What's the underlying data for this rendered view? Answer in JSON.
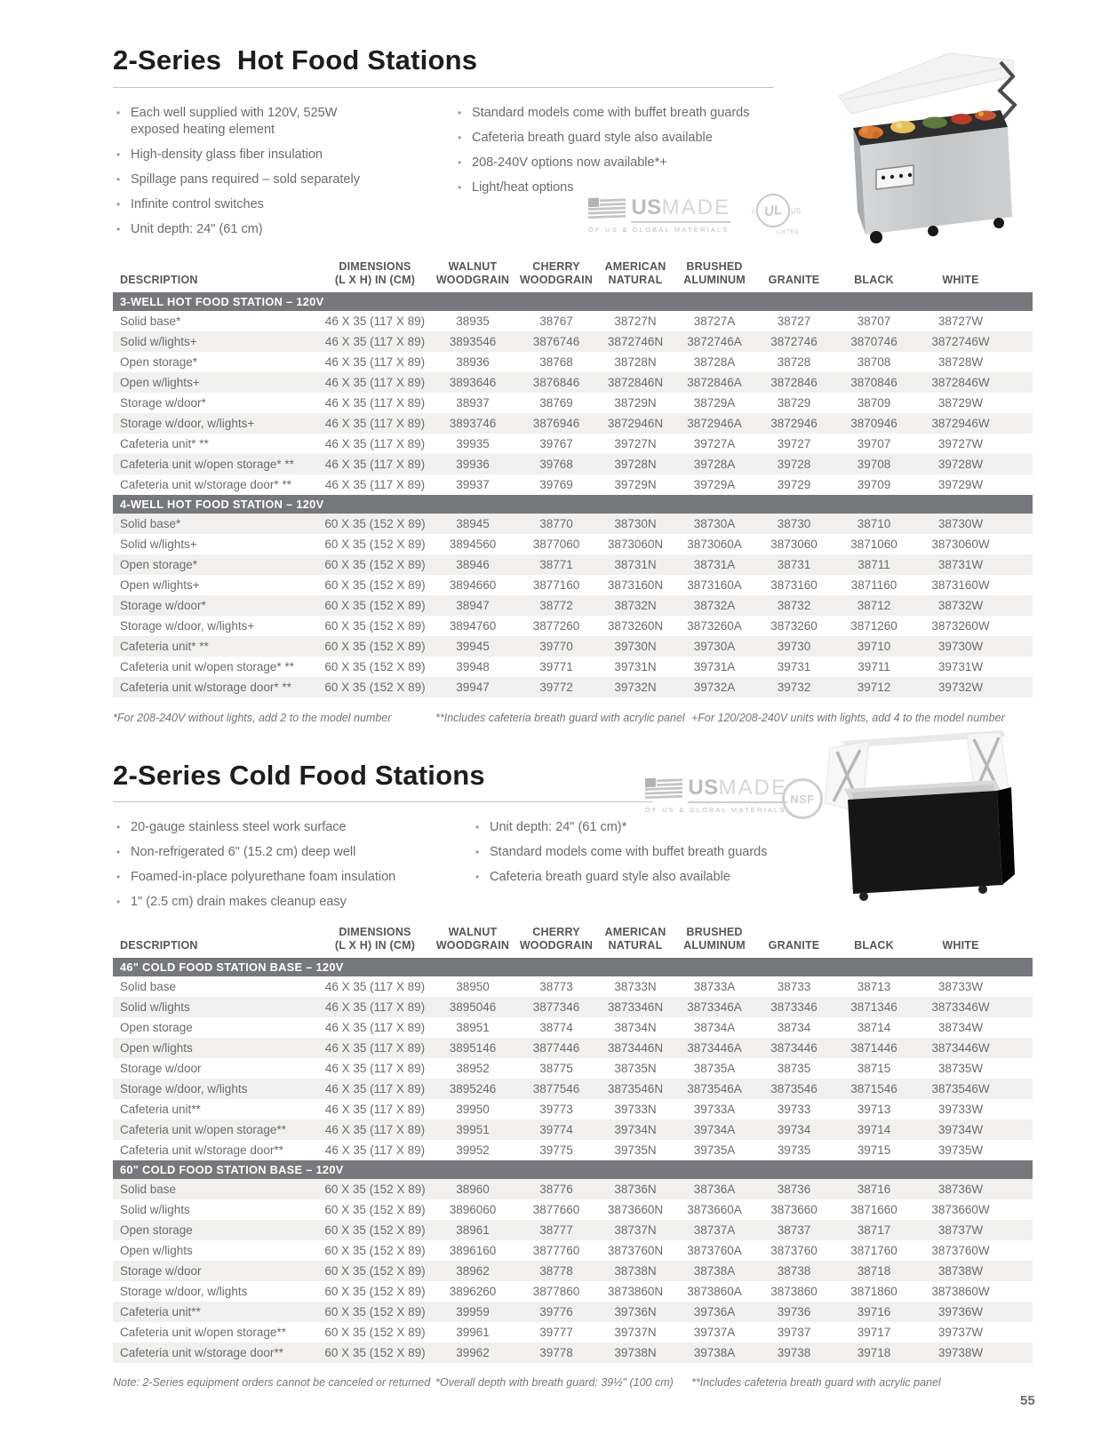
{
  "page_number": "55",
  "badges": {
    "usmade_strong": "US",
    "usmade_light": "MADE",
    "usmade_sub": "OF US & GLOBAL MATERIALS",
    "ul_c": "c",
    "ul_text": "UL",
    "ul_us": "US",
    "ul_listed": "LISTED",
    "nsf_text": "NSF"
  },
  "hot": {
    "title": "2-Series  Hot Food Stations",
    "bullets_left": [
      "Each well supplied with 120V, 525W exposed heating element",
      "High-density glass fiber insulation",
      "Spillage pans required – sold separately",
      "Infinite control switches",
      "Unit depth: 24\" (61 cm)"
    ],
    "bullets_right": [
      "Standard models come with buffet breath guards",
      "Cafeteria breath guard style also available",
      "208-240V options now available*+",
      "Light/heat options"
    ],
    "table": {
      "headers": [
        [
          "DESCRIPTION"
        ],
        [
          "DIMENSIONS",
          "(L X H) IN (CM)"
        ],
        [
          "WALNUT",
          "WOODGRAIN"
        ],
        [
          "CHERRY",
          "WOODGRAIN"
        ],
        [
          "AMERICAN",
          "NATURAL"
        ],
        [
          "BRUSHED",
          "ALUMINUM"
        ],
        [
          "GRANITE"
        ],
        [
          "BLACK"
        ],
        [
          "WHITE"
        ]
      ],
      "sections": [
        {
          "label": "3-WELL HOT FOOD STATION – 120V",
          "rows": [
            [
              "Solid base*",
              "46 X 35 (117 X 89)",
              "38935",
              "38767",
              "38727N",
              "38727A",
              "38727",
              "38707",
              "38727W"
            ],
            [
              "Solid w/lights+",
              "46 X 35 (117 X 89)",
              "3893546",
              "3876746",
              "3872746N",
              "3872746A",
              "3872746",
              "3870746",
              "3872746W"
            ],
            [
              "Open storage*",
              "46 X 35 (117 X 89)",
              "38936",
              "38768",
              "38728N",
              "38728A",
              "38728",
              "38708",
              "38728W"
            ],
            [
              "Open w/lights+",
              "46 X 35 (117 X 89)",
              "3893646",
              "3876846",
              "3872846N",
              "3872846A",
              "3872846",
              "3870846",
              "3872846W"
            ],
            [
              "Storage w/door*",
              "46 X 35 (117 X 89)",
              "38937",
              "38769",
              "38729N",
              "38729A",
              "38729",
              "38709",
              "38729W"
            ],
            [
              "Storage w/door, w/lights+",
              "46 X 35 (117 X 89)",
              "3893746",
              "3876946",
              "3872946N",
              "3872946A",
              "3872946",
              "3870946",
              "3872946W"
            ],
            [
              "Cafeteria unit* **",
              "46 X 35 (117 X 89)",
              "39935",
              "39767",
              "39727N",
              "39727A",
              "39727",
              "39707",
              "39727W"
            ],
            [
              "Cafeteria unit w/open storage* **",
              "46 X 35 (117 X 89)",
              "39936",
              "39768",
              "39728N",
              "39728A",
              "39728",
              "39708",
              "39728W"
            ],
            [
              "Cafeteria unit w/storage door* **",
              "46 X 35 (117 X 89)",
              "39937",
              "39769",
              "39729N",
              "39729A",
              "39729",
              "39709",
              "39729W"
            ]
          ]
        },
        {
          "label": "4-WELL HOT FOOD STATION – 120V",
          "rows": [
            [
              "Solid base*",
              "60 X 35 (152 X 89)",
              "38945",
              "38770",
              "38730N",
              "38730A",
              "38730",
              "38710",
              "38730W"
            ],
            [
              "Solid w/lights+",
              "60 X 35 (152 X 89)",
              "3894560",
              "3877060",
              "3873060N",
              "3873060A",
              "3873060",
              "3871060",
              "3873060W"
            ],
            [
              "Open storage*",
              "60 X 35 (152 X 89)",
              "38946",
              "38771",
              "38731N",
              "38731A",
              "38731",
              "38711",
              "38731W"
            ],
            [
              "Open w/lights+",
              "60 X 35 (152 X 89)",
              "3894660",
              "3877160",
              "3873160N",
              "3873160A",
              "3873160",
              "3871160",
              "3873160W"
            ],
            [
              "Storage w/door*",
              "60 X 35 (152 X 89)",
              "38947",
              "38772",
              "38732N",
              "38732A",
              "38732",
              "38712",
              "38732W"
            ],
            [
              "Storage w/door, w/lights+",
              "60 X 35 (152 X 89)",
              "3894760",
              "3877260",
              "3873260N",
              "3873260A",
              "3873260",
              "3871260",
              "3873260W"
            ],
            [
              "Cafeteria unit* **",
              "60 X 35 (152 X 89)",
              "39945",
              "39770",
              "39730N",
              "39730A",
              "39730",
              "39710",
              "39730W"
            ],
            [
              "Cafeteria unit w/open storage* **",
              "60 X 35 (152 X 89)",
              "39948",
              "39771",
              "39731N",
              "39731A",
              "39731",
              "39711",
              "39731W"
            ],
            [
              "Cafeteria unit w/storage door* **",
              "60 X 35 (152 X 89)",
              "39947",
              "39772",
              "39732N",
              "39732A",
              "39732",
              "39712",
              "39732W"
            ]
          ]
        }
      ]
    },
    "footnotes": [
      "*For 208-240V without lights, add 2 to the model number",
      "**Includes cafeteria breath guard with acrylic panel",
      "+For 120/208-240V units with lights, add 4 to the model number"
    ]
  },
  "cold": {
    "title": "2-Series Cold Food Stations",
    "bullets_left": [
      "20-gauge stainless steel work surface",
      "Non-refrigerated 6\" (15.2 cm) deep well",
      "Foamed-in-place polyurethane foam insulation",
      "1\" (2.5 cm) drain makes cleanup easy"
    ],
    "bullets_right": [
      "Unit depth: 24\" (61 cm)*",
      "Standard models come with buffet breath guards",
      "Cafeteria breath guard style also available"
    ],
    "table": {
      "headers": [
        [
          "DESCRIPTION"
        ],
        [
          "DIMENSIONS",
          "(L X H) IN (CM)"
        ],
        [
          "WALNUT",
          "WOODGRAIN"
        ],
        [
          "CHERRY",
          "WOODGRAIN"
        ],
        [
          "AMERICAN",
          "NATURAL"
        ],
        [
          "BRUSHED",
          "ALUMINUM"
        ],
        [
          "GRANITE"
        ],
        [
          "BLACK"
        ],
        [
          "WHITE"
        ]
      ],
      "sections": [
        {
          "label": "46\" COLD FOOD STATION BASE – 120V",
          "rows": [
            [
              "Solid base",
              "46 X 35 (117 X 89)",
              "38950",
              "38773",
              "38733N",
              "38733A",
              "38733",
              "38713",
              "38733W"
            ],
            [
              "Solid w/lights",
              "46 X 35 (117 X 89)",
              "3895046",
              "3877346",
              "3873346N",
              "3873346A",
              "3873346",
              "3871346",
              "3873346W"
            ],
            [
              "Open storage",
              "46 X 35 (117 X 89)",
              "38951",
              "38774",
              "38734N",
              "38734A",
              "38734",
              "38714",
              "38734W"
            ],
            [
              "Open w/lights",
              "46 X 35 (117 X 89)",
              "3895146",
              "3877446",
              "3873446N",
              "3873446A",
              "3873446",
              "3871446",
              "3873446W"
            ],
            [
              "Storage w/door",
              "46 X 35 (117 X 89)",
              "38952",
              "38775",
              "38735N",
              "38735A",
              "38735",
              "38715",
              "38735W"
            ],
            [
              "Storage w/door, w/lights",
              "46 X 35 (117 X 89)",
              "3895246",
              "3877546",
              "3873546N",
              "3873546A",
              "3873546",
              "3871546",
              "3873546W"
            ],
            [
              "Cafeteria unit**",
              "46 X 35 (117 X 89)",
              "39950",
              "39773",
              "39733N",
              "39733A",
              "39733",
              "39713",
              "39733W"
            ],
            [
              "Cafeteria unit w/open storage**",
              "46 X 35 (117 X 89)",
              "39951",
              "39774",
              "39734N",
              "39734A",
              "39734",
              "39714",
              "39734W"
            ],
            [
              "Cafeteria unit w/storage door**",
              "46 X 35 (117 X 89)",
              "39952",
              "39775",
              "39735N",
              "39735A",
              "39735",
              "39715",
              "39735W"
            ]
          ]
        },
        {
          "label": "60\" COLD FOOD STATION BASE – 120V",
          "rows": [
            [
              "Solid base",
              "60 X 35 (152 X 89)",
              "38960",
              "38776",
              "38736N",
              "38736A",
              "38736",
              "38716",
              "38736W"
            ],
            [
              "Solid w/lights",
              "60 X 35 (152 X 89)",
              "3896060",
              "3877660",
              "3873660N",
              "3873660A",
              "3873660",
              "3871660",
              "3873660W"
            ],
            [
              "Open storage",
              "60 X 35 (152 X 89)",
              "38961",
              "38777",
              "38737N",
              "38737A",
              "38737",
              "38717",
              "38737W"
            ],
            [
              "Open w/lights",
              "60 X 35 (152 X 89)",
              "3896160",
              "3877760",
              "3873760N",
              "3873760A",
              "3873760",
              "3871760",
              "3873760W"
            ],
            [
              "Storage w/door",
              "60 X 35 (152 X 89)",
              "38962",
              "38778",
              "38738N",
              "38738A",
              "38738",
              "38718",
              "38738W"
            ],
            [
              "Storage w/door, w/lights",
              "60 X 35 (152 X 89)",
              "3896260",
              "3877860",
              "3873860N",
              "3873860A",
              "3873860",
              "3871860",
              "3873860W"
            ],
            [
              "Cafeteria unit**",
              "60 X 35 (152 X 89)",
              "39959",
              "39776",
              "39736N",
              "39736A",
              "39736",
              "39716",
              "39736W"
            ],
            [
              "Cafeteria unit w/open storage**",
              "60 X 35 (152 X 89)",
              "39961",
              "39777",
              "39737N",
              "39737A",
              "39737",
              "39717",
              "39737W"
            ],
            [
              "Cafeteria unit w/storage door**",
              "60 X 35 (152 X 89)",
              "39962",
              "39778",
              "39738N",
              "39738A",
              "39738",
              "39718",
              "39738W"
            ]
          ]
        }
      ]
    },
    "footnotes": [
      "Note: 2-Series equipment orders cannot be canceled or returned",
      "*Overall depth with breath guard: 39½\" (100 cm)",
      "**Includes cafeteria breath guard with acrylic panel"
    ]
  },
  "colors": {
    "band_bg": "#77787b",
    "alt_row_bg": "#f1f0ee",
    "body_text": "#6b6c6e",
    "title_text": "#1d1d1b"
  }
}
